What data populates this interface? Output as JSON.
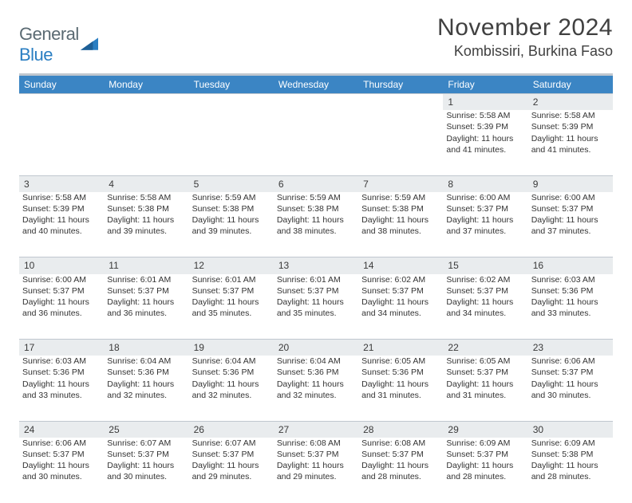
{
  "logo": {
    "text1": "General",
    "text2": "Blue"
  },
  "title": "November 2024",
  "location": "Kombissiri, Burkina Faso",
  "header_bg": "#3b85c4",
  "header_text": "#ffffff",
  "daynum_bg": "#e9ecee",
  "border_color": "#c0c7cf",
  "weekdays": [
    "Sunday",
    "Monday",
    "Tuesday",
    "Wednesday",
    "Thursday",
    "Friday",
    "Saturday"
  ],
  "weeks": [
    {
      "days": [
        {
          "n": "",
          "lines": []
        },
        {
          "n": "",
          "lines": []
        },
        {
          "n": "",
          "lines": []
        },
        {
          "n": "",
          "lines": []
        },
        {
          "n": "",
          "lines": []
        },
        {
          "n": "1",
          "lines": [
            "Sunrise: 5:58 AM",
            "Sunset: 5:39 PM",
            "Daylight: 11 hours and 41 minutes."
          ]
        },
        {
          "n": "2",
          "lines": [
            "Sunrise: 5:58 AM",
            "Sunset: 5:39 PM",
            "Daylight: 11 hours and 41 minutes."
          ]
        }
      ]
    },
    {
      "days": [
        {
          "n": "3",
          "lines": [
            "Sunrise: 5:58 AM",
            "Sunset: 5:39 PM",
            "Daylight: 11 hours and 40 minutes."
          ]
        },
        {
          "n": "4",
          "lines": [
            "Sunrise: 5:58 AM",
            "Sunset: 5:38 PM",
            "Daylight: 11 hours and 39 minutes."
          ]
        },
        {
          "n": "5",
          "lines": [
            "Sunrise: 5:59 AM",
            "Sunset: 5:38 PM",
            "Daylight: 11 hours and 39 minutes."
          ]
        },
        {
          "n": "6",
          "lines": [
            "Sunrise: 5:59 AM",
            "Sunset: 5:38 PM",
            "Daylight: 11 hours and 38 minutes."
          ]
        },
        {
          "n": "7",
          "lines": [
            "Sunrise: 5:59 AM",
            "Sunset: 5:38 PM",
            "Daylight: 11 hours and 38 minutes."
          ]
        },
        {
          "n": "8",
          "lines": [
            "Sunrise: 6:00 AM",
            "Sunset: 5:37 PM",
            "Daylight: 11 hours and 37 minutes."
          ]
        },
        {
          "n": "9",
          "lines": [
            "Sunrise: 6:00 AM",
            "Sunset: 5:37 PM",
            "Daylight: 11 hours and 37 minutes."
          ]
        }
      ]
    },
    {
      "days": [
        {
          "n": "10",
          "lines": [
            "Sunrise: 6:00 AM",
            "Sunset: 5:37 PM",
            "Daylight: 11 hours and 36 minutes."
          ]
        },
        {
          "n": "11",
          "lines": [
            "Sunrise: 6:01 AM",
            "Sunset: 5:37 PM",
            "Daylight: 11 hours and 36 minutes."
          ]
        },
        {
          "n": "12",
          "lines": [
            "Sunrise: 6:01 AM",
            "Sunset: 5:37 PM",
            "Daylight: 11 hours and 35 minutes."
          ]
        },
        {
          "n": "13",
          "lines": [
            "Sunrise: 6:01 AM",
            "Sunset: 5:37 PM",
            "Daylight: 11 hours and 35 minutes."
          ]
        },
        {
          "n": "14",
          "lines": [
            "Sunrise: 6:02 AM",
            "Sunset: 5:37 PM",
            "Daylight: 11 hours and 34 minutes."
          ]
        },
        {
          "n": "15",
          "lines": [
            "Sunrise: 6:02 AM",
            "Sunset: 5:37 PM",
            "Daylight: 11 hours and 34 minutes."
          ]
        },
        {
          "n": "16",
          "lines": [
            "Sunrise: 6:03 AM",
            "Sunset: 5:36 PM",
            "Daylight: 11 hours and 33 minutes."
          ]
        }
      ]
    },
    {
      "days": [
        {
          "n": "17",
          "lines": [
            "Sunrise: 6:03 AM",
            "Sunset: 5:36 PM",
            "Daylight: 11 hours and 33 minutes."
          ]
        },
        {
          "n": "18",
          "lines": [
            "Sunrise: 6:04 AM",
            "Sunset: 5:36 PM",
            "Daylight: 11 hours and 32 minutes."
          ]
        },
        {
          "n": "19",
          "lines": [
            "Sunrise: 6:04 AM",
            "Sunset: 5:36 PM",
            "Daylight: 11 hours and 32 minutes."
          ]
        },
        {
          "n": "20",
          "lines": [
            "Sunrise: 6:04 AM",
            "Sunset: 5:36 PM",
            "Daylight: 11 hours and 32 minutes."
          ]
        },
        {
          "n": "21",
          "lines": [
            "Sunrise: 6:05 AM",
            "Sunset: 5:36 PM",
            "Daylight: 11 hours and 31 minutes."
          ]
        },
        {
          "n": "22",
          "lines": [
            "Sunrise: 6:05 AM",
            "Sunset: 5:37 PM",
            "Daylight: 11 hours and 31 minutes."
          ]
        },
        {
          "n": "23",
          "lines": [
            "Sunrise: 6:06 AM",
            "Sunset: 5:37 PM",
            "Daylight: 11 hours and 30 minutes."
          ]
        }
      ]
    },
    {
      "days": [
        {
          "n": "24",
          "lines": [
            "Sunrise: 6:06 AM",
            "Sunset: 5:37 PM",
            "Daylight: 11 hours and 30 minutes."
          ]
        },
        {
          "n": "25",
          "lines": [
            "Sunrise: 6:07 AM",
            "Sunset: 5:37 PM",
            "Daylight: 11 hours and 30 minutes."
          ]
        },
        {
          "n": "26",
          "lines": [
            "Sunrise: 6:07 AM",
            "Sunset: 5:37 PM",
            "Daylight: 11 hours and 29 minutes."
          ]
        },
        {
          "n": "27",
          "lines": [
            "Sunrise: 6:08 AM",
            "Sunset: 5:37 PM",
            "Daylight: 11 hours and 29 minutes."
          ]
        },
        {
          "n": "28",
          "lines": [
            "Sunrise: 6:08 AM",
            "Sunset: 5:37 PM",
            "Daylight: 11 hours and 28 minutes."
          ]
        },
        {
          "n": "29",
          "lines": [
            "Sunrise: 6:09 AM",
            "Sunset: 5:37 PM",
            "Daylight: 11 hours and 28 minutes."
          ]
        },
        {
          "n": "30",
          "lines": [
            "Sunrise: 6:09 AM",
            "Sunset: 5:38 PM",
            "Daylight: 11 hours and 28 minutes."
          ]
        }
      ]
    }
  ]
}
